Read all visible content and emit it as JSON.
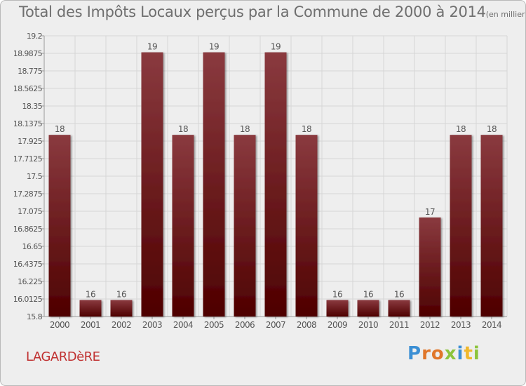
{
  "title": {
    "main": "Total des Impôts Locaux perçus par la Commune de 2000 à 2014",
    "unit": "(en milliers d'€)"
  },
  "commune": "LAGARDèRE",
  "logo": {
    "letters": [
      "P",
      "r",
      "o",
      "x",
      "i",
      "t",
      "i"
    ]
  },
  "colors": {
    "bar_top": "#8a3a3f",
    "bar_bottom": "#4e0000",
    "title": "#6f6f6f",
    "commune": "#c03030"
  },
  "chart_data": {
    "type": "bar",
    "categories": [
      "2000",
      "2001",
      "2002",
      "2003",
      "2004",
      "2005",
      "2006",
      "2007",
      "2008",
      "2009",
      "2010",
      "2011",
      "2012",
      "2013",
      "2014"
    ],
    "values": [
      18,
      16,
      16,
      19,
      18,
      19,
      18,
      19,
      18,
      16,
      16,
      16,
      17,
      18,
      18
    ],
    "data_labels": [
      "18",
      "16",
      "16",
      "19",
      "18",
      "19",
      "18",
      "19",
      "18",
      "16",
      "16",
      "16",
      "17",
      "18",
      "18"
    ],
    "ylim": [
      15.8,
      19.2
    ],
    "yticks": [
      "15.8",
      "16.0125",
      "16.225",
      "16.4375",
      "16.65",
      "16.8625",
      "17.075",
      "17.2875",
      "17.5",
      "17.7125",
      "17.925",
      "18.1375",
      "18.35",
      "18.5625",
      "18.775",
      "18.9875",
      "19.2"
    ],
    "grid": true,
    "xlabel": "",
    "ylabel": ""
  }
}
